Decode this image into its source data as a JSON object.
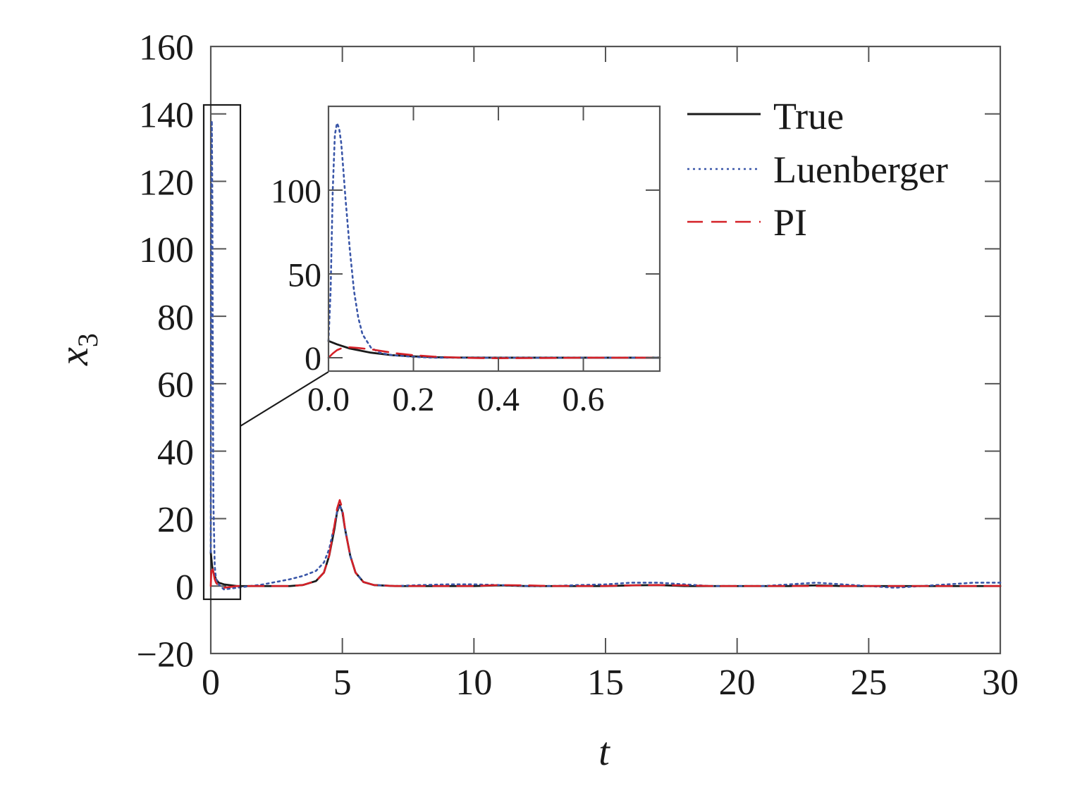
{
  "chart_data": {
    "type": "line",
    "xlabel": "t",
    "ylabel": "x",
    "ylabel_subscript": "3",
    "xlim": [
      0,
      30
    ],
    "ylim": [
      -20,
      160
    ],
    "xticks": [
      0,
      5,
      10,
      15,
      20,
      25,
      30
    ],
    "yticks": [
      -20,
      0,
      20,
      40,
      60,
      80,
      100,
      120,
      140,
      160
    ],
    "xtick_labels": [
      "0",
      "5",
      "10",
      "15",
      "20",
      "25",
      "30"
    ],
    "ytick_labels": [
      "−20",
      "0",
      "20",
      "40",
      "60",
      "80",
      "100",
      "120",
      "140",
      "160"
    ],
    "grid": false,
    "legend_position": "top-right",
    "series": [
      {
        "name": "True",
        "color": "#1a1a1a",
        "style": "solid",
        "x": [
          0,
          0.05,
          0.1,
          0.2,
          0.3,
          0.5,
          1,
          2,
          3,
          3.5,
          4,
          4.3,
          4.5,
          4.7,
          4.8,
          4.9,
          5.0,
          5.1,
          5.3,
          5.5,
          5.8,
          6.2,
          7,
          8,
          9,
          10,
          11,
          12,
          13,
          14,
          15,
          16,
          17,
          18,
          19,
          20,
          21,
          22,
          23,
          24,
          25,
          26,
          27,
          28,
          29,
          30
        ],
        "y": [
          10,
          6,
          4,
          2,
          1,
          0.5,
          0,
          0,
          0,
          0.3,
          1.5,
          4,
          9,
          17,
          22,
          24,
          22,
          17,
          9,
          4,
          1.2,
          0.3,
          0,
          0,
          0,
          0,
          0.2,
          0,
          0,
          0,
          0,
          0.2,
          0.3,
          0,
          0,
          0,
          0,
          0,
          0.2,
          0,
          0,
          0,
          0,
          0,
          0,
          0
        ]
      },
      {
        "name": "Luenberger",
        "color": "#3a56a8",
        "style": "dotted",
        "x": [
          0,
          0.02,
          0.04,
          0.06,
          0.08,
          0.1,
          0.15,
          0.2,
          0.3,
          0.5,
          1,
          2,
          3,
          3.5,
          4,
          4.3,
          4.5,
          4.7,
          4.8,
          4.9,
          5.0,
          5.1,
          5.3,
          5.5,
          5.8,
          6.2,
          7,
          8,
          9,
          10,
          11,
          12,
          13,
          14,
          15,
          16,
          17,
          18,
          19,
          20,
          21,
          22,
          23,
          24,
          25,
          26,
          27,
          28,
          29,
          30
        ],
        "y": [
          10,
          100,
          138,
          115,
          60,
          25,
          6,
          2,
          0.5,
          -1,
          -0.5,
          0.5,
          2,
          3,
          4.5,
          7,
          11,
          18,
          22,
          24,
          22,
          17,
          9,
          4,
          1.2,
          0.3,
          0,
          0.3,
          0.5,
          0.5,
          0.3,
          0,
          0,
          0.3,
          0.5,
          1,
          1,
          0.5,
          0,
          0,
          0,
          0.5,
          1,
          0.5,
          0,
          -0.5,
          0,
          0.5,
          1,
          1
        ]
      },
      {
        "name": "PI",
        "color": "#d42027",
        "style": "dashed",
        "x": [
          0,
          0.02,
          0.04,
          0.07,
          0.1,
          0.15,
          0.2,
          0.3,
          0.5,
          1,
          2,
          3,
          3.5,
          4,
          4.3,
          4.5,
          4.7,
          4.8,
          4.9,
          5.0,
          5.1,
          5.3,
          5.5,
          5.8,
          6.2,
          7,
          8,
          9,
          10,
          11,
          12,
          13,
          14,
          15,
          16,
          17,
          18,
          19,
          20,
          21,
          22,
          23,
          24,
          25,
          26,
          27,
          28,
          29,
          30
        ],
        "y": [
          0,
          4,
          6,
          5.5,
          4,
          2,
          1,
          0,
          -0.5,
          0,
          0,
          0,
          0.3,
          1.5,
          4,
          9,
          18,
          23,
          25.5,
          23,
          17,
          9,
          4,
          1.2,
          0.3,
          0,
          0,
          0,
          0,
          0.3,
          0.2,
          0,
          0,
          0,
          0.2,
          0.3,
          0.2,
          0,
          0,
          0,
          0,
          0,
          0,
          0,
          0,
          0,
          0,
          0,
          0
        ]
      }
    ],
    "inset": {
      "xlim": [
        0,
        0.78
      ],
      "ylim": [
        -8,
        150
      ],
      "xticks": [
        0.0,
        0.2,
        0.4,
        0.6
      ],
      "xtick_labels": [
        "0.0",
        "0.2",
        "0.4",
        "0.6"
      ],
      "yticks": [
        0,
        50,
        100
      ],
      "ytick_labels": [
        "0",
        "50",
        "100"
      ],
      "series": [
        {
          "name": "True",
          "x": [
            0,
            0.02,
            0.05,
            0.08,
            0.1,
            0.15,
            0.2,
            0.25,
            0.3,
            0.4,
            0.5,
            0.6,
            0.7,
            0.78
          ],
          "y": [
            10,
            8,
            5.5,
            4,
            3,
            1.5,
            0.8,
            0.3,
            0.1,
            0,
            0,
            0,
            0,
            0
          ]
        },
        {
          "name": "Luenberger",
          "x": [
            0,
            0.005,
            0.01,
            0.015,
            0.02,
            0.025,
            0.03,
            0.035,
            0.04,
            0.05,
            0.06,
            0.07,
            0.08,
            0.1,
            0.12,
            0.15,
            0.2,
            0.25,
            0.3,
            0.4,
            0.5,
            0.6,
            0.7,
            0.78
          ],
          "y": [
            10,
            40,
            100,
            133,
            140,
            137,
            128,
            112,
            95,
            65,
            40,
            24,
            14,
            6,
            3,
            1.5,
            0.5,
            0,
            0,
            0,
            0,
            0,
            0,
            0
          ]
        },
        {
          "name": "PI",
          "x": [
            0,
            0.01,
            0.02,
            0.03,
            0.05,
            0.07,
            0.1,
            0.13,
            0.16,
            0.2,
            0.25,
            0.3,
            0.35,
            0.4,
            0.5,
            0.6,
            0.7,
            0.78
          ],
          "y": [
            0,
            2.5,
            4.5,
            5.6,
            6.2,
            5.8,
            5,
            3.8,
            2.6,
            1.5,
            0.6,
            0.1,
            -0.2,
            -0.3,
            -0.2,
            0,
            0,
            0
          ]
        }
      ]
    }
  }
}
